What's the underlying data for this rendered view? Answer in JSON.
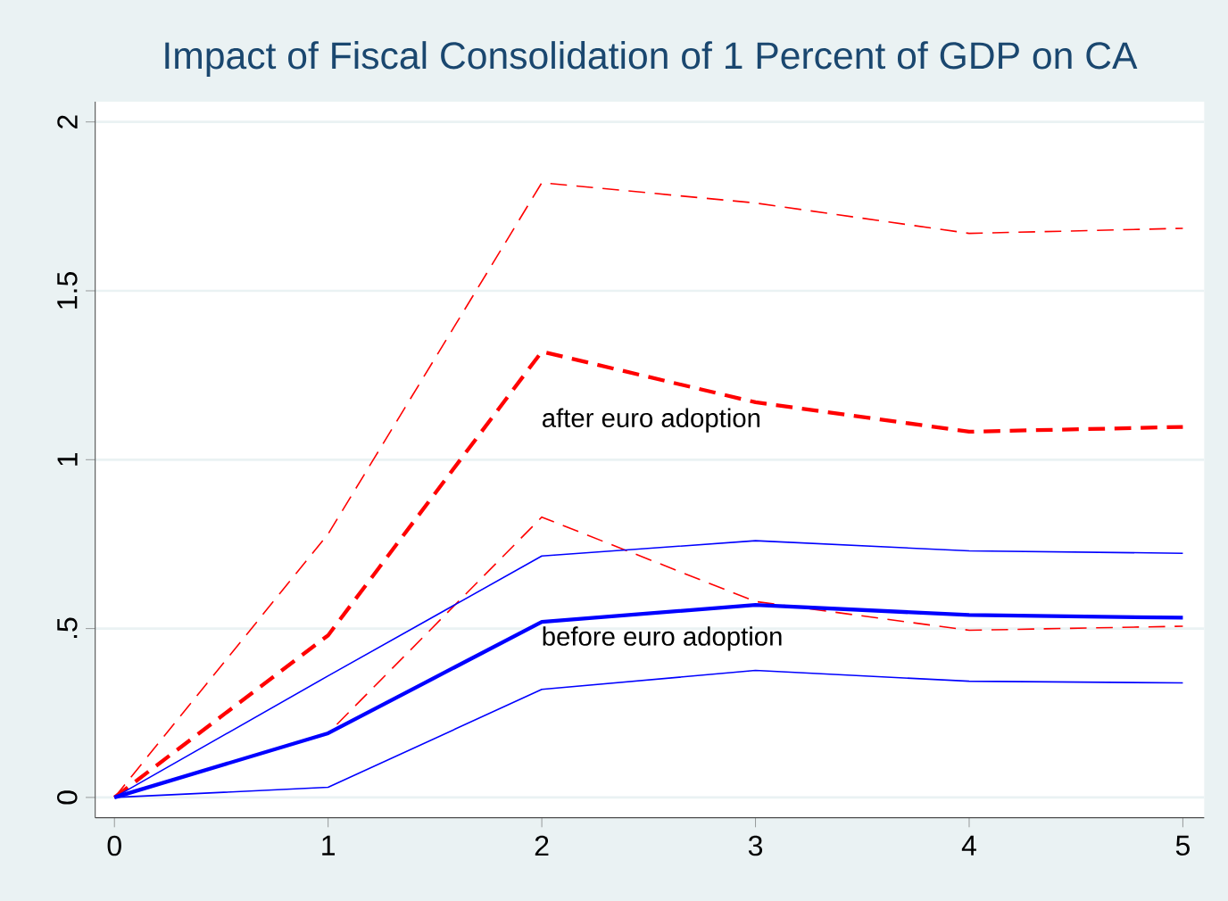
{
  "chart_data": {
    "type": "line",
    "title": "Impact of Fiscal Consolidation of 1 Percent of GDP on CA",
    "x": [
      0,
      1,
      2,
      3,
      4,
      5
    ],
    "series": [
      {
        "color": "#ff0000",
        "line_style": "dashed",
        "values": [
          0,
          0.78,
          1.82,
          1.76,
          1.67,
          1.685
        ]
      },
      {
        "color": "#ff0000",
        "line_style": "dashed",
        "values": [
          0,
          0.48,
          1.32,
          1.17,
          1.083,
          1.097
        ]
      },
      {
        "color": "#ff0000",
        "line_style": "dashed",
        "values": [
          0,
          0.19,
          0.83,
          0.58,
          0.495,
          0.507
        ]
      },
      {
        "color": "#0000ff",
        "line_style": "solid",
        "values": [
          0,
          0.36,
          0.715,
          0.76,
          0.73,
          0.723
        ]
      },
      {
        "color": "#0000ff",
        "line_style": "solid",
        "values": [
          0,
          0.19,
          0.52,
          0.57,
          0.54,
          0.532
        ]
      },
      {
        "color": "#0000ff",
        "line_style": "solid",
        "values": [
          0,
          0.03,
          0.32,
          0.376,
          0.344,
          0.339
        ]
      }
    ],
    "annotations": [
      "after euro adoption",
      "before euro adoption"
    ],
    "xlim": [
      -0.09,
      5.1
    ],
    "ylim": [
      -0.06,
      2.06
    ],
    "xticks": [
      0,
      1,
      2,
      3,
      4,
      5
    ],
    "yticks": [
      {
        "value": 0,
        "label": "0"
      },
      {
        "value": 0.5,
        "label": ".5"
      },
      {
        "value": 1,
        "label": "1"
      },
      {
        "value": 1.5,
        "label": "1.5"
      },
      {
        "value": 2,
        "label": "2"
      }
    ],
    "grid": "y"
  }
}
